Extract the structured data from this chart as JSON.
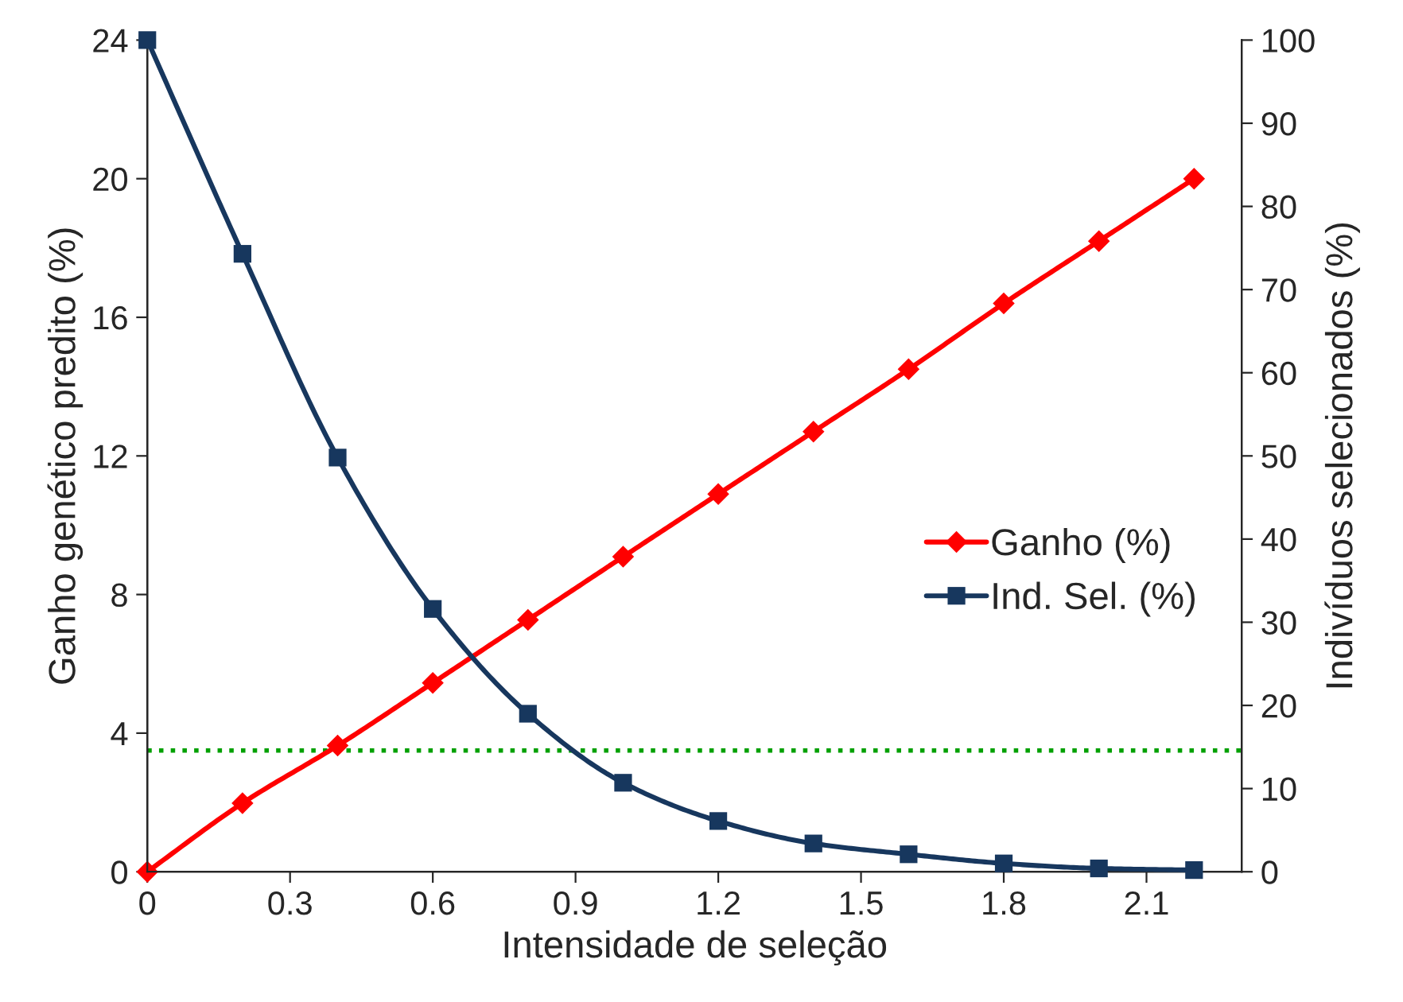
{
  "chart_data": {
    "type": "line",
    "xlabel": "Intensidade de seleção",
    "ylabel": "Ganho genético predito (%)",
    "y2label": "Indivíduos selecionados (%)",
    "x": [
      0,
      0.2,
      0.4,
      0.6,
      0.8,
      1.0,
      1.2,
      1.4,
      1.6,
      1.8,
      2.0,
      2.2
    ],
    "series": [
      {
        "name": "Ganho (%)",
        "color": "#ff0000",
        "marker": "diamond",
        "values": [
          0,
          1.98,
          3.64,
          5.45,
          7.27,
          9.09,
          10.9,
          12.7,
          14.5,
          16.4,
          18.2,
          20
        ]
      },
      {
        "name": "Ind. Sel. (%)",
        "color": "#17375e",
        "marker": "square",
        "axis": "y2",
        "values": [
          100,
          74.3,
          49.8,
          31.6,
          19.0,
          10.7,
          6.1,
          3.4,
          2.1,
          1.0,
          0.4,
          0.2
        ]
      }
    ],
    "xlim": [
      0,
      2.3
    ],
    "xticks": [
      0,
      0.3,
      0.6,
      0.9,
      1.2,
      1.5,
      1.8,
      2.1
    ],
    "ylim": [
      0,
      24
    ],
    "yticks": [
      0,
      4,
      8,
      12,
      16,
      20,
      24
    ],
    "y2lim": [
      0,
      100
    ],
    "y2ticks": [
      0,
      10,
      20,
      30,
      40,
      50,
      60,
      70,
      80,
      90,
      100
    ],
    "ref_lines": [
      {
        "axis": "y",
        "value": 3.5,
        "color": "#00a000",
        "line_style": "dotted"
      }
    ],
    "grid": false,
    "legend": "right",
    "line_style": "solid"
  }
}
